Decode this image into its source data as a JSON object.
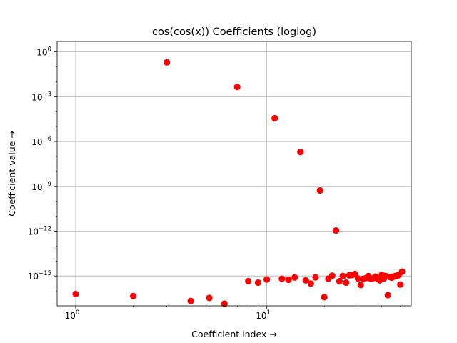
{
  "chart_data": {
    "type": "scatter",
    "title": "cos(cos(x)) Coefficients (loglog)",
    "xlabel": "Coefficient index  →",
    "ylabel": "Coefficient value  →",
    "xscale": "log",
    "yscale": "log",
    "xlim": [
      0.8,
      57
    ],
    "ylim": [
      1e-17,
      5
    ],
    "x_ticks": [
      {
        "base": "10",
        "exp": "0",
        "value": 1
      },
      {
        "base": "10",
        "exp": "1",
        "value": 10
      }
    ],
    "y_ticks": [
      {
        "base": "10",
        "exp": "0",
        "value": 1
      },
      {
        "base": "10",
        "exp": "−3",
        "value": 0.001
      },
      {
        "base": "10",
        "exp": "−6",
        "value": 1e-06
      },
      {
        "base": "10",
        "exp": "−9",
        "value": 1e-09
      },
      {
        "base": "10",
        "exp": "−12",
        "value": 1e-12
      },
      {
        "base": "10",
        "exp": "−15",
        "value": 1e-15
      }
    ],
    "grid": true,
    "marker_color": "#ff0000",
    "series": [
      {
        "x": [
          1,
          2,
          3,
          4,
          5,
          6,
          7,
          8,
          9,
          10,
          11,
          12,
          13,
          14,
          15,
          16,
          17,
          18,
          19,
          20,
          21,
          22,
          23,
          24,
          25,
          26,
          27,
          28,
          29,
          30,
          31,
          32,
          33,
          34,
          35,
          36,
          37,
          38,
          39,
          40,
          41,
          42,
          43,
          44,
          45,
          46,
          47,
          48,
          49,
          50,
          51
        ],
        "y": [
          6.2e-17,
          4.5e-17,
          0.2,
          2.1e-17,
          3.4e-17,
          1.4e-17,
          0.0045,
          4.5e-16,
          3.6e-16,
          5.8e-16,
          3.6e-05,
          6.5e-16,
          5.6e-16,
          8e-16,
          2e-07,
          5.1e-16,
          3.1e-16,
          8.1e-16,
          5.3e-10,
          3.8e-17,
          6.6e-16,
          1.05e-15,
          1.1e-12,
          4.4e-16,
          1e-15,
          3.6e-16,
          1.1e-15,
          1.15e-15,
          1.35e-15,
          6.8e-16,
          2.5e-16,
          6.4e-16,
          7.2e-16,
          9.8e-16,
          6.5e-16,
          7e-16,
          9e-16,
          6.6e-16,
          5.1e-16,
          1.2e-15,
          6.9e-16,
          9.8e-16,
          5.2e-17,
          8.6e-16,
          7.8e-16,
          9e-16,
          1e-15,
          1e-15,
          1.2e-15,
          2.7e-16,
          1.95e-15
        ]
      }
    ]
  }
}
